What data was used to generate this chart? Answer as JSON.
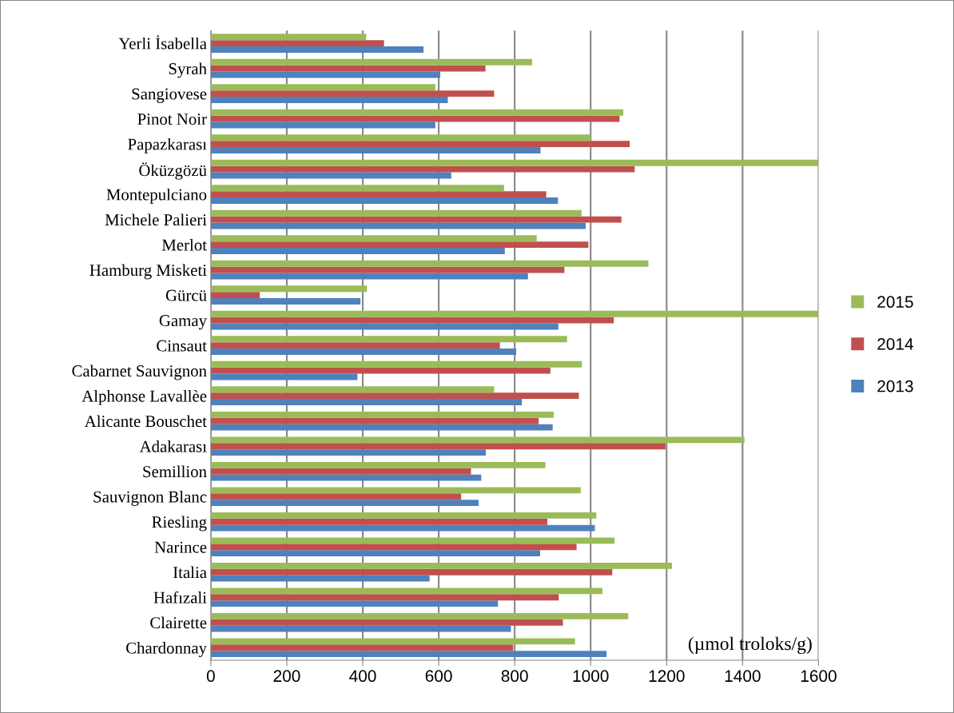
{
  "chart_data": {
    "type": "bar",
    "orientation": "horizontal",
    "categories": [
      "Yerli İsabella",
      "Syrah",
      "Sangiovese",
      "Pinot Noir",
      "Papazkarası",
      "Öküzgözü",
      "Montepulciano",
      "Michele Palieri",
      "Merlot",
      "Hamburg Misketi",
      "Gürcü",
      "Gamay",
      "Cinsaut",
      "Cabarnet Sauvignon",
      "Alphonse Lavallèe",
      "Alicante Bouschet",
      "Adakarası",
      "Semillion",
      "Sauvignon Blanc",
      "Riesling",
      "Narince",
      "Italia",
      "Hafızali",
      "Clairette",
      "Chardonnay"
    ],
    "series": [
      {
        "name": "2013",
        "color": "#4f81bd",
        "values": [
          560,
          604,
          624,
          591,
          868,
          633,
          914,
          987,
          774,
          835,
          394,
          915,
          804,
          386,
          819,
          900,
          724,
          712,
          705,
          1011,
          867,
          576,
          756,
          790,
          1042
        ]
      },
      {
        "name": "2014",
        "color": "#c0504d",
        "values": [
          456,
          723,
          746,
          1076,
          1103,
          1116,
          883,
          1081,
          994,
          931,
          129,
          1061,
          761,
          894,
          969,
          863,
          1197,
          685,
          659,
          886,
          963,
          1057,
          916,
          927,
          796
        ]
      },
      {
        "name": "2015",
        "color": "#9bbb59",
        "values": [
          409,
          846,
          591,
          1086,
          1000,
          1600,
          772,
          976,
          858,
          1152,
          411,
          1600,
          938,
          977,
          746,
          903,
          1405,
          881,
          974,
          1015,
          1063,
          1214,
          1031,
          1099,
          959
        ]
      }
    ],
    "xlim": [
      0,
      1600
    ],
    "xticks": [
      0,
      200,
      400,
      600,
      800,
      1000,
      1200,
      1400,
      1600
    ],
    "grid": "x",
    "legend": "right",
    "annotations": [
      "(µmol troloks/g)"
    ]
  }
}
